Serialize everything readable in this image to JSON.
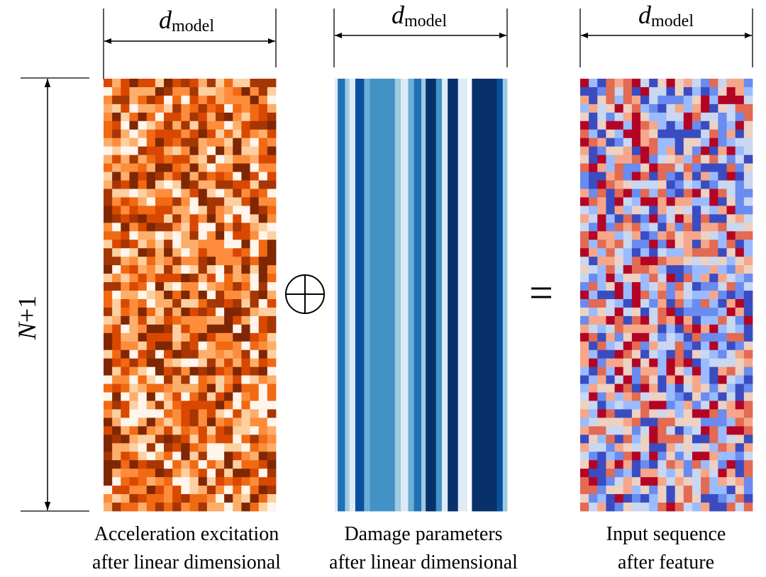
{
  "dimension_labels": {
    "d_symbol": "d",
    "d_subscript": "model",
    "n_symbol": "N",
    "n_suffix": "+1"
  },
  "operators": {
    "equals": "="
  },
  "panels": [
    {
      "id": "acceleration",
      "caption_line1": "Acceleration excitation",
      "caption_line2": "after linear dimensional",
      "palette": [
        "#fff5eb",
        "#fdd0a2",
        "#fdae6b",
        "#fd8d3c",
        "#f16913",
        "#d94801",
        "#a63603",
        "#7f2704"
      ],
      "pattern": "grid"
    },
    {
      "id": "damage",
      "caption_line1": "Damage parameters",
      "caption_line2": "after linear dimensional",
      "palette": [
        "#deebf7",
        "#9ecae1",
        "#6baed6",
        "#4292c6",
        "#2171b5",
        "#08519c",
        "#08306b"
      ],
      "pattern": "columns"
    },
    {
      "id": "input",
      "caption_line1": "Input sequence",
      "caption_line2": "after feature",
      "palette": [
        "#3b4cc0",
        "#6a8bef",
        "#9abbff",
        "#c9d7f0",
        "#edd1c2",
        "#f7a789",
        "#e36a53",
        "#b40426"
      ],
      "pattern": "grid"
    }
  ]
}
